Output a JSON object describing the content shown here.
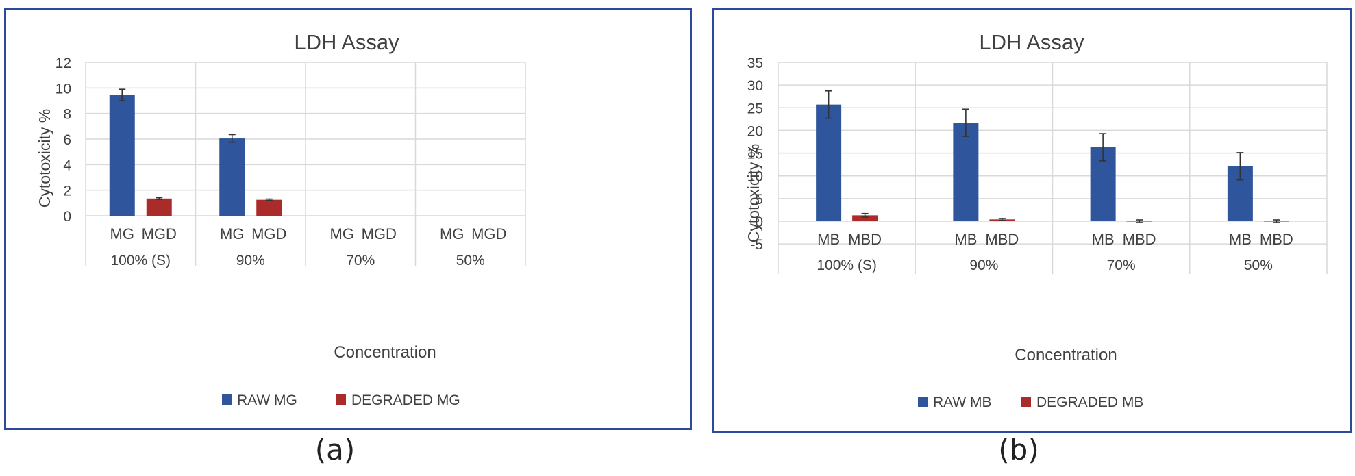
{
  "colors": {
    "raw": "#2F559C",
    "degraded": "#A92B2A",
    "frame": "#2B4A9E",
    "grid": "#D9D9D9",
    "text": "#404040"
  },
  "captions": [
    "(a)",
    "(b)"
  ],
  "chart_data": [
    {
      "type": "bar",
      "title": "LDH Assay",
      "xlabel": "Concentration",
      "ylabel": "Cytotoxicity %",
      "ylim": [
        0,
        12
      ],
      "yticks": [
        0,
        2,
        4,
        6,
        8,
        10,
        12
      ],
      "groups": [
        "100% (S)",
        "90%",
        "70%",
        "50%"
      ],
      "subcategories": [
        "MG",
        "MGD"
      ],
      "grid": true,
      "legend_position": "bottom",
      "series": [
        {
          "name": "RAW MG",
          "color": "#2F559C",
          "values": [
            9.45,
            6.05,
            null,
            null
          ],
          "errors": [
            0.45,
            0.3,
            null,
            null
          ]
        },
        {
          "name": "DEGRADED MG",
          "color": "#A92B2A",
          "values": [
            1.35,
            1.25,
            null,
            null
          ],
          "errors": [
            0.07,
            0.06,
            null,
            null
          ]
        }
      ]
    },
    {
      "type": "bar",
      "title": "LDH Assay",
      "xlabel": "Concentration",
      "ylabel": "Cytotoxicity %",
      "ylim": [
        -5,
        35
      ],
      "yticks": [
        -5,
        0,
        5,
        10,
        15,
        20,
        25,
        30,
        35
      ],
      "groups": [
        "100% (S)",
        "90%",
        "70%",
        "50%"
      ],
      "subcategories": [
        "MB",
        "MBD"
      ],
      "grid": true,
      "legend_position": "bottom",
      "series": [
        {
          "name": "RAW MB",
          "color": "#2F559C",
          "values": [
            25.7,
            21.7,
            16.3,
            12.1
          ],
          "errors": [
            3.0,
            3.0,
            3.0,
            3.0
          ]
        },
        {
          "name": "DEGRADED MB",
          "color": "#A92B2A",
          "values": [
            1.3,
            0.4,
            0.0,
            0.0
          ],
          "errors": [
            0.4,
            0.2,
            0.3,
            0.3
          ]
        }
      ]
    }
  ]
}
